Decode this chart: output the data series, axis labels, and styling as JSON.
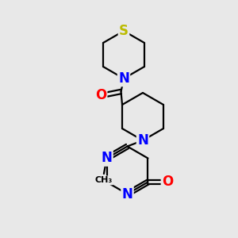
{
  "bg_color": "#e8e8e8",
  "atom_colors": {
    "N": "#0000ff",
    "O": "#ff0000",
    "S": "#bbbb00"
  },
  "bond_color": "#000000",
  "bond_width": 1.6,
  "dbo": 0.09
}
